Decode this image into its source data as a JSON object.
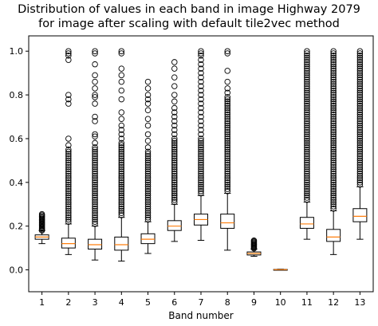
{
  "chart_data": {
    "type": "boxplot",
    "title_lines": [
      "Distribution of values in each band in image Highway 2079",
      "for image after scaling with default tile2vec method"
    ],
    "xlabel": "Band number",
    "ylabel": "",
    "ylim": [
      -0.1,
      1.07
    ],
    "yticks": [
      0.0,
      0.2,
      0.4,
      0.6,
      0.8,
      1.0
    ],
    "ytick_labels": [
      "0.0",
      "0.2",
      "0.4",
      "0.6",
      "0.8",
      "1.0"
    ],
    "categories": [
      "1",
      "2",
      "3",
      "4",
      "5",
      "6",
      "7",
      "8",
      "9",
      "10",
      "11",
      "12",
      "13"
    ],
    "grid": false,
    "boxes": [
      {
        "band": "1",
        "whisker_low": 0.12,
        "q1": 0.14,
        "median": 0.15,
        "q3": 0.16,
        "whisker_high": 0.18,
        "outliers": [
          0.18,
          0.185,
          0.19,
          0.195,
          0.2,
          0.205,
          0.21,
          0.215,
          0.22,
          0.225,
          0.23,
          0.235,
          0.24,
          0.245,
          0.25,
          0.255
        ]
      },
      {
        "band": "2",
        "whisker_low": 0.07,
        "q1": 0.1,
        "median": 0.12,
        "q3": 0.145,
        "whisker_high": 0.21,
        "outliers": [
          0.22,
          0.23,
          0.24,
          0.25,
          0.26,
          0.27,
          0.28,
          0.29,
          0.3,
          0.31,
          0.32,
          0.33,
          0.34,
          0.35,
          0.36,
          0.37,
          0.38,
          0.39,
          0.4,
          0.41,
          0.42,
          0.43,
          0.44,
          0.45,
          0.46,
          0.47,
          0.48,
          0.49,
          0.5,
          0.51,
          0.52,
          0.53,
          0.54,
          0.55,
          0.57,
          0.6,
          0.76,
          0.78,
          0.8,
          0.96,
          0.98,
          0.99,
          1.0
        ]
      },
      {
        "band": "3",
        "whisker_low": 0.045,
        "q1": 0.095,
        "median": 0.115,
        "q3": 0.14,
        "whisker_high": 0.2,
        "outliers": [
          0.21,
          0.22,
          0.23,
          0.24,
          0.25,
          0.26,
          0.27,
          0.28,
          0.29,
          0.3,
          0.31,
          0.32,
          0.33,
          0.34,
          0.35,
          0.36,
          0.37,
          0.38,
          0.39,
          0.4,
          0.41,
          0.42,
          0.43,
          0.44,
          0.45,
          0.46,
          0.47,
          0.48,
          0.49,
          0.5,
          0.51,
          0.52,
          0.53,
          0.54,
          0.55,
          0.56,
          0.58,
          0.61,
          0.62,
          0.68,
          0.7,
          0.76,
          0.79,
          0.8,
          0.83,
          0.86,
          0.89,
          0.94,
          0.99,
          1.0
        ]
      },
      {
        "band": "4",
        "whisker_low": 0.04,
        "q1": 0.09,
        "median": 0.115,
        "q3": 0.15,
        "whisker_high": 0.24,
        "outliers": [
          0.25,
          0.26,
          0.27,
          0.28,
          0.29,
          0.3,
          0.31,
          0.32,
          0.33,
          0.34,
          0.35,
          0.36,
          0.37,
          0.38,
          0.39,
          0.4,
          0.41,
          0.42,
          0.43,
          0.44,
          0.45,
          0.46,
          0.47,
          0.48,
          0.49,
          0.5,
          0.51,
          0.52,
          0.53,
          0.54,
          0.55,
          0.56,
          0.57,
          0.58,
          0.6,
          0.62,
          0.64,
          0.66,
          0.69,
          0.72,
          0.78,
          0.82,
          0.86,
          0.89,
          0.92,
          0.99,
          1.0
        ]
      },
      {
        "band": "5",
        "whisker_low": 0.075,
        "q1": 0.12,
        "median": 0.14,
        "q3": 0.165,
        "whisker_high": 0.22,
        "outliers": [
          0.23,
          0.24,
          0.25,
          0.26,
          0.27,
          0.28,
          0.29,
          0.3,
          0.31,
          0.32,
          0.33,
          0.34,
          0.35,
          0.36,
          0.37,
          0.38,
          0.39,
          0.4,
          0.41,
          0.42,
          0.43,
          0.44,
          0.45,
          0.46,
          0.47,
          0.48,
          0.49,
          0.5,
          0.51,
          0.52,
          0.53,
          0.54,
          0.56,
          0.59,
          0.62,
          0.66,
          0.69,
          0.73,
          0.76,
          0.78,
          0.8,
          0.83,
          0.86
        ]
      },
      {
        "band": "6",
        "whisker_low": 0.13,
        "q1": 0.18,
        "median": 0.2,
        "q3": 0.225,
        "whisker_high": 0.3,
        "outliers": [
          0.31,
          0.32,
          0.33,
          0.34,
          0.35,
          0.36,
          0.37,
          0.38,
          0.39,
          0.4,
          0.41,
          0.42,
          0.43,
          0.44,
          0.45,
          0.46,
          0.47,
          0.48,
          0.49,
          0.5,
          0.51,
          0.52,
          0.53,
          0.54,
          0.55,
          0.56,
          0.57,
          0.58,
          0.59,
          0.6,
          0.62,
          0.64,
          0.66,
          0.68,
          0.7,
          0.72,
          0.74,
          0.77,
          0.8,
          0.84,
          0.88,
          0.92,
          0.95
        ]
      },
      {
        "band": "7",
        "whisker_low": 0.135,
        "q1": 0.205,
        "median": 0.23,
        "q3": 0.255,
        "whisker_high": 0.34,
        "outliers": [
          0.35,
          0.36,
          0.37,
          0.38,
          0.39,
          0.4,
          0.41,
          0.42,
          0.43,
          0.44,
          0.45,
          0.46,
          0.47,
          0.48,
          0.49,
          0.5,
          0.51,
          0.52,
          0.53,
          0.54,
          0.55,
          0.56,
          0.57,
          0.58,
          0.59,
          0.6,
          0.62,
          0.64,
          0.66,
          0.68,
          0.7,
          0.72,
          0.74,
          0.76,
          0.78,
          0.8,
          0.82,
          0.84,
          0.86,
          0.88,
          0.9,
          0.92,
          0.94,
          0.96,
          0.98,
          0.99,
          1.0
        ]
      },
      {
        "band": "8",
        "whisker_low": 0.09,
        "q1": 0.19,
        "median": 0.215,
        "q3": 0.255,
        "whisker_high": 0.35,
        "outliers": [
          0.36,
          0.37,
          0.38,
          0.39,
          0.4,
          0.41,
          0.42,
          0.43,
          0.44,
          0.45,
          0.46,
          0.47,
          0.48,
          0.49,
          0.5,
          0.51,
          0.52,
          0.53,
          0.54,
          0.55,
          0.56,
          0.57,
          0.58,
          0.59,
          0.6,
          0.61,
          0.62,
          0.63,
          0.64,
          0.65,
          0.66,
          0.67,
          0.68,
          0.69,
          0.7,
          0.71,
          0.72,
          0.73,
          0.74,
          0.75,
          0.76,
          0.77,
          0.78,
          0.79,
          0.81,
          0.83,
          0.86,
          0.91,
          0.99,
          1.0
        ]
      },
      {
        "band": "9",
        "whisker_low": 0.062,
        "q1": 0.068,
        "median": 0.075,
        "q3": 0.082,
        "whisker_high": 0.095,
        "outliers": [
          0.098,
          0.102,
          0.106,
          0.11,
          0.114,
          0.118,
          0.122,
          0.126,
          0.13,
          0.134
        ]
      },
      {
        "band": "10",
        "whisker_low": 0.0,
        "q1": 0.0,
        "median": 0.001,
        "q3": 0.002,
        "whisker_high": 0.003,
        "outliers": []
      },
      {
        "band": "11",
        "whisker_low": 0.14,
        "q1": 0.19,
        "median": 0.21,
        "q3": 0.24,
        "whisker_high": 0.31,
        "outliers": [
          0.32,
          0.33,
          0.34,
          0.35,
          0.36,
          0.37,
          0.38,
          0.39,
          0.4,
          0.41,
          0.42,
          0.43,
          0.44,
          0.45,
          0.46,
          0.47,
          0.48,
          0.49,
          0.5,
          0.51,
          0.52,
          0.53,
          0.54,
          0.55,
          0.56,
          0.57,
          0.58,
          0.59,
          0.6,
          0.61,
          0.62,
          0.63,
          0.64,
          0.65,
          0.66,
          0.67,
          0.68,
          0.69,
          0.7,
          0.71,
          0.72,
          0.73,
          0.74,
          0.75,
          0.76,
          0.77,
          0.78,
          0.79,
          0.8,
          0.81,
          0.82,
          0.83,
          0.84,
          0.85,
          0.86,
          0.87,
          0.88,
          0.89,
          0.9,
          0.91,
          0.92,
          0.93,
          0.94,
          0.95,
          0.96,
          0.97,
          0.98,
          0.99,
          1.0
        ]
      },
      {
        "band": "12",
        "whisker_low": 0.07,
        "q1": 0.13,
        "median": 0.15,
        "q3": 0.185,
        "whisker_high": 0.27,
        "outliers": [
          0.28,
          0.29,
          0.3,
          0.31,
          0.32,
          0.33,
          0.34,
          0.35,
          0.36,
          0.37,
          0.38,
          0.39,
          0.4,
          0.41,
          0.42,
          0.43,
          0.44,
          0.45,
          0.46,
          0.47,
          0.48,
          0.49,
          0.5,
          0.51,
          0.52,
          0.53,
          0.54,
          0.55,
          0.56,
          0.57,
          0.58,
          0.59,
          0.6,
          0.61,
          0.62,
          0.63,
          0.64,
          0.65,
          0.66,
          0.67,
          0.68,
          0.69,
          0.7,
          0.71,
          0.72,
          0.73,
          0.74,
          0.75,
          0.76,
          0.77,
          0.78,
          0.79,
          0.8,
          0.81,
          0.82,
          0.83,
          0.84,
          0.85,
          0.86,
          0.87,
          0.88,
          0.89,
          0.9,
          0.91,
          0.92,
          0.93,
          0.94,
          0.95,
          0.96,
          0.97,
          0.98,
          0.99,
          1.0
        ]
      },
      {
        "band": "13",
        "whisker_low": 0.14,
        "q1": 0.22,
        "median": 0.245,
        "q3": 0.28,
        "whisker_high": 0.38,
        "outliers": [
          0.39,
          0.4,
          0.41,
          0.42,
          0.43,
          0.44,
          0.45,
          0.46,
          0.47,
          0.48,
          0.49,
          0.5,
          0.51,
          0.52,
          0.53,
          0.54,
          0.55,
          0.56,
          0.57,
          0.58,
          0.59,
          0.6,
          0.61,
          0.62,
          0.63,
          0.64,
          0.65,
          0.66,
          0.67,
          0.68,
          0.69,
          0.7,
          0.71,
          0.72,
          0.73,
          0.74,
          0.75,
          0.76,
          0.77,
          0.78,
          0.79,
          0.8,
          0.81,
          0.82,
          0.83,
          0.84,
          0.85,
          0.86,
          0.87,
          0.88,
          0.89,
          0.9,
          0.91,
          0.92,
          0.93,
          0.94,
          0.95,
          0.96,
          0.97,
          0.98,
          0.99,
          1.0
        ]
      }
    ],
    "colors": {
      "box_edge": "#000000",
      "median": "#ff7f0e",
      "whisker": "#000000",
      "outlier_edge": "#000000",
      "background": "#ffffff"
    }
  }
}
